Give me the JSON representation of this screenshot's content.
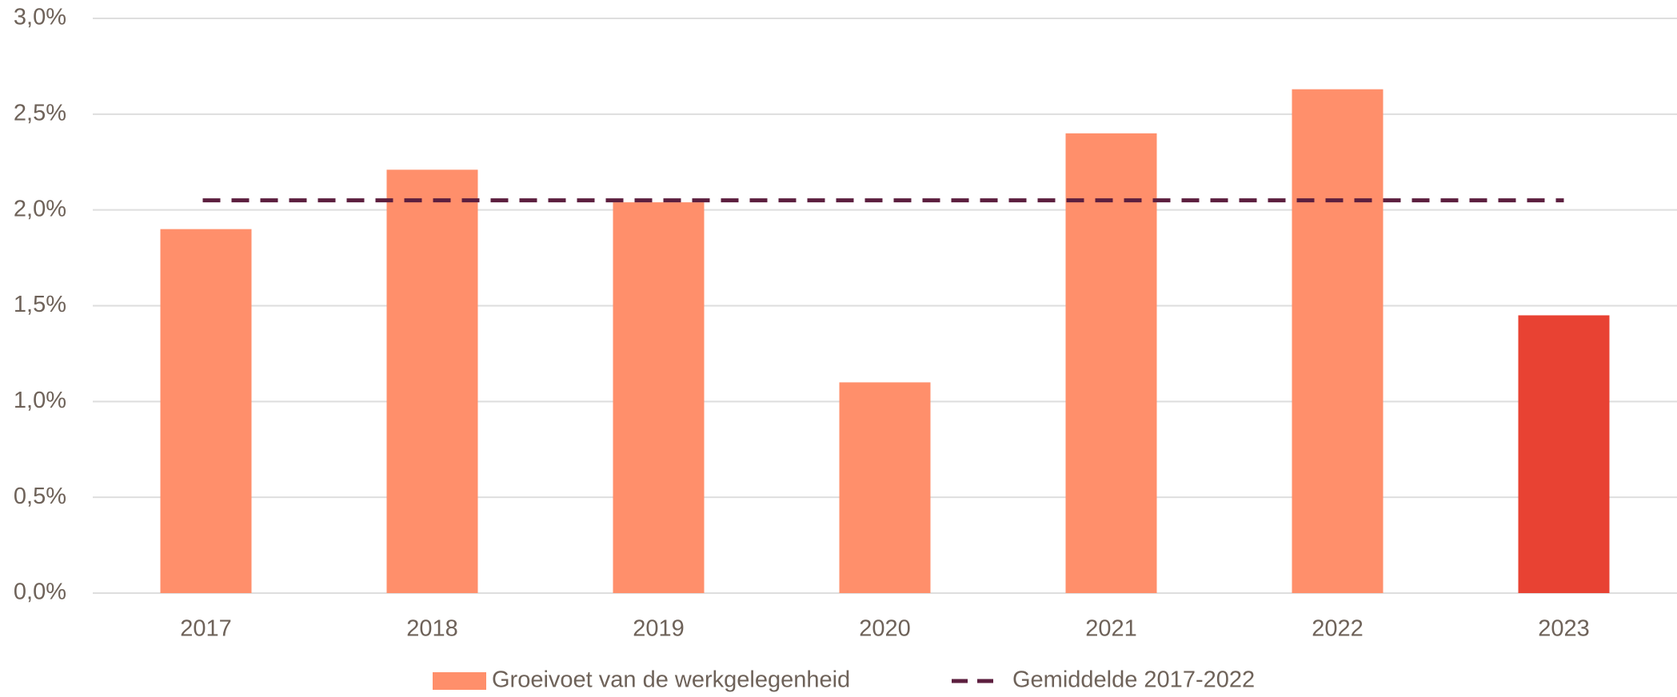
{
  "chart_data": {
    "type": "bar",
    "categories": [
      "2017",
      "2018",
      "2019",
      "2020",
      "2021",
      "2022",
      "2023"
    ],
    "series": [
      {
        "name": "Groeivoet van de werkgelegenheid",
        "type": "bar",
        "color": "#ff8f6b",
        "colors": [
          "#ff8f6b",
          "#ff8f6b",
          "#ff8f6b",
          "#ff8f6b",
          "#ff8f6b",
          "#ff8f6b",
          "#e84233"
        ],
        "values": [
          1.9,
          2.21,
          2.04,
          1.1,
          2.4,
          2.63,
          1.45
        ]
      },
      {
        "name": "Gemiddelde 2017-2022",
        "type": "line",
        "dashed": true,
        "color": "#5c1f3f",
        "values": [
          2.05,
          2.05,
          2.05,
          2.05,
          2.05,
          2.05,
          2.05
        ]
      }
    ],
    "ylim": [
      0,
      3
    ],
    "yticks": [
      {
        "value": 0,
        "label": "0,0%"
      },
      {
        "value": 0.5,
        "label": "0,5%"
      },
      {
        "value": 1,
        "label": "1,0%"
      },
      {
        "value": 1.5,
        "label": "1,5%"
      },
      {
        "value": 2,
        "label": "2,0%"
      },
      {
        "value": 2.5,
        "label": "2,5%"
      },
      {
        "value": 3,
        "label": "3,0%"
      }
    ],
    "grid": true,
    "legend": "bottom"
  }
}
